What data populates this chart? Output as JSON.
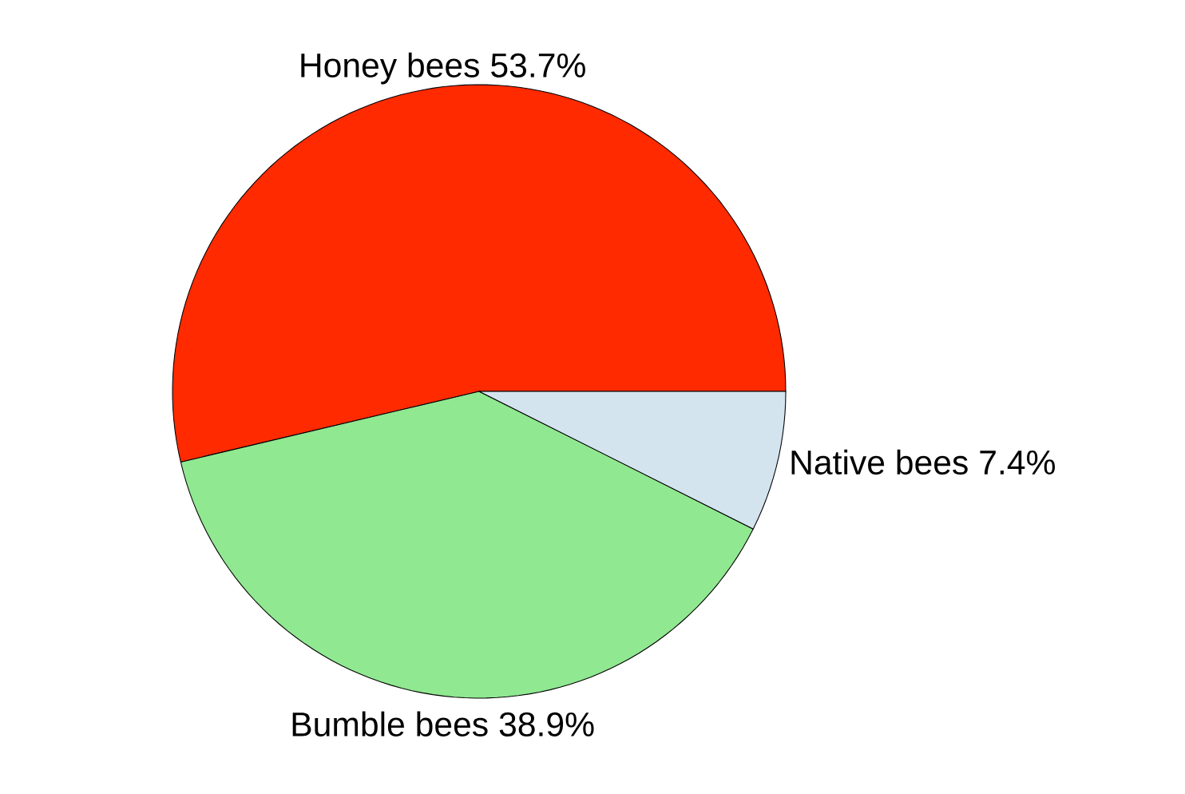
{
  "chart_data": {
    "type": "pie",
    "categories": [
      "Honey bees",
      "Bumble bees",
      "Native bees"
    ],
    "values": [
      53.7,
      38.9,
      7.4
    ],
    "value_labels": [
      "53.7%",
      "38.9%",
      "7.4%"
    ],
    "colors": [
      "#ff2a00",
      "#90e890",
      "#d4e4ee"
    ]
  }
}
